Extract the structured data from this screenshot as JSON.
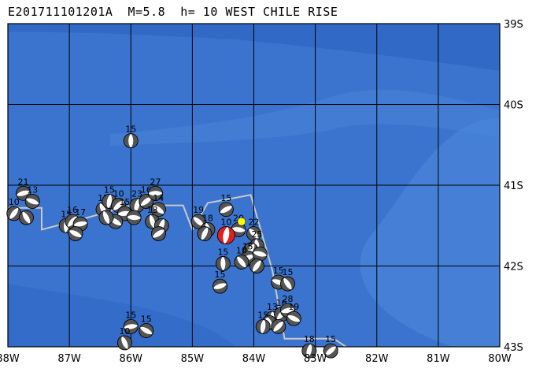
{
  "title": "E201711101201A  M=5.8  h= 10 WEST CHILE RISE",
  "colors": {
    "ocean_deep": "#2c63c0",
    "ocean_mid": "#3a74cf",
    "ocean_shallow": "#4a86d8",
    "grid": "#000000",
    "plate_boundary": "#c8c8c8",
    "main_event": "#e0201f",
    "epicenter": "#ffff00"
  },
  "lon_labels": [
    "88W",
    "87W",
    "86W",
    "85W",
    "84W",
    "83W",
    "82W",
    "81W",
    "80W"
  ],
  "lat_labels": [
    "39S",
    "40S",
    "41S",
    "42S",
    "43S"
  ],
  "bounds": {
    "lon_min": -88,
    "lon_max": -80,
    "lat_min": -43,
    "lat_max": -39
  },
  "main_event": {
    "lon": -84.45,
    "lat": -41.62,
    "depth_label": "10"
  },
  "epicenter": {
    "lon": -84.2,
    "lat": -41.45
  },
  "events": [
    {
      "lon": -86.0,
      "lat": -40.45,
      "depth": "15"
    },
    {
      "lon": -87.9,
      "lat": -41.35,
      "depth": "10"
    },
    {
      "lon": -87.75,
      "lat": -41.1,
      "depth": "21"
    },
    {
      "lon": -87.6,
      "lat": -41.2,
      "depth": "13"
    },
    {
      "lon": -87.7,
      "lat": -41.4,
      "depth": ""
    },
    {
      "lon": -87.05,
      "lat": -41.5,
      "depth": "15"
    },
    {
      "lon": -86.95,
      "lat": -41.45,
      "depth": "16"
    },
    {
      "lon": -86.82,
      "lat": -41.48,
      "depth": "17"
    },
    {
      "lon": -86.9,
      "lat": -41.6,
      "depth": ""
    },
    {
      "lon": -86.45,
      "lat": -41.3,
      "depth": "15"
    },
    {
      "lon": -86.35,
      "lat": -41.2,
      "depth": "15"
    },
    {
      "lon": -86.2,
      "lat": -41.25,
      "depth": "10"
    },
    {
      "lon": -86.1,
      "lat": -41.35,
      "depth": "15"
    },
    {
      "lon": -86.25,
      "lat": -41.45,
      "depth": ""
    },
    {
      "lon": -86.4,
      "lat": -41.4,
      "depth": ""
    },
    {
      "lon": -85.9,
      "lat": -41.25,
      "depth": "23"
    },
    {
      "lon": -85.75,
      "lat": -41.2,
      "depth": "16"
    },
    {
      "lon": -85.6,
      "lat": -41.1,
      "depth": "27"
    },
    {
      "lon": -85.55,
      "lat": -41.3,
      "depth": "14"
    },
    {
      "lon": -85.65,
      "lat": -41.45,
      "depth": "13"
    },
    {
      "lon": -85.5,
      "lat": -41.5,
      "depth": ""
    },
    {
      "lon": -85.55,
      "lat": -41.6,
      "depth": ""
    },
    {
      "lon": -85.95,
      "lat": -41.4,
      "depth": ""
    },
    {
      "lon": -84.9,
      "lat": -41.45,
      "depth": "19"
    },
    {
      "lon": -84.75,
      "lat": -41.55,
      "depth": "18"
    },
    {
      "lon": -84.8,
      "lat": -41.6,
      "depth": ""
    },
    {
      "lon": -84.45,
      "lat": -41.3,
      "depth": "15"
    },
    {
      "lon": -84.25,
      "lat": -41.55,
      "depth": "20"
    },
    {
      "lon": -84.0,
      "lat": -41.6,
      "depth": "22"
    },
    {
      "lon": -83.95,
      "lat": -41.75,
      "depth": "25"
    },
    {
      "lon": -84.05,
      "lat": -41.8,
      "depth": ""
    },
    {
      "lon": -84.1,
      "lat": -41.9,
      "depth": "15"
    },
    {
      "lon": -83.9,
      "lat": -41.85,
      "depth": ""
    },
    {
      "lon": -84.2,
      "lat": -41.95,
      "depth": "10"
    },
    {
      "lon": -84.5,
      "lat": -41.97,
      "depth": "15"
    },
    {
      "lon": -83.95,
      "lat": -42.0,
      "depth": ""
    },
    {
      "lon": -84.55,
      "lat": -42.25,
      "depth": "15"
    },
    {
      "lon": -83.6,
      "lat": -42.2,
      "depth": "15"
    },
    {
      "lon": -83.45,
      "lat": -42.22,
      "depth": "15"
    },
    {
      "lon": -83.7,
      "lat": -42.65,
      "depth": "13"
    },
    {
      "lon": -83.55,
      "lat": -42.6,
      "depth": "16"
    },
    {
      "lon": -83.45,
      "lat": -42.55,
      "depth": "28"
    },
    {
      "lon": -83.35,
      "lat": -42.65,
      "depth": "19"
    },
    {
      "lon": -83.75,
      "lat": -42.7,
      "depth": ""
    },
    {
      "lon": -83.85,
      "lat": -42.75,
      "depth": "15"
    },
    {
      "lon": -83.6,
      "lat": -42.75,
      "depth": ""
    },
    {
      "lon": -86.0,
      "lat": -42.75,
      "depth": "15"
    },
    {
      "lon": -85.75,
      "lat": -42.8,
      "depth": "15"
    },
    {
      "lon": -86.1,
      "lat": -42.95,
      "depth": "10"
    },
    {
      "lon": -83.1,
      "lat": -43.05,
      "depth": "18"
    },
    {
      "lon": -82.75,
      "lat": -43.05,
      "depth": "15"
    }
  ],
  "plate_boundary": [
    [
      -88,
      -41.28
    ],
    [
      -87.45,
      -41.28
    ],
    [
      -87.45,
      -41.55
    ],
    [
      -86.7,
      -41.4
    ],
    [
      -86.0,
      -41.25
    ],
    [
      -85.15,
      -41.25
    ],
    [
      -85.0,
      -41.55
    ],
    [
      -84.75,
      -41.22
    ],
    [
      -84.05,
      -41.12
    ],
    [
      -83.7,
      -42.05
    ],
    [
      -83.5,
      -42.9
    ],
    [
      -82.7,
      -42.9
    ],
    [
      -82.5,
      -43.0
    ]
  ]
}
